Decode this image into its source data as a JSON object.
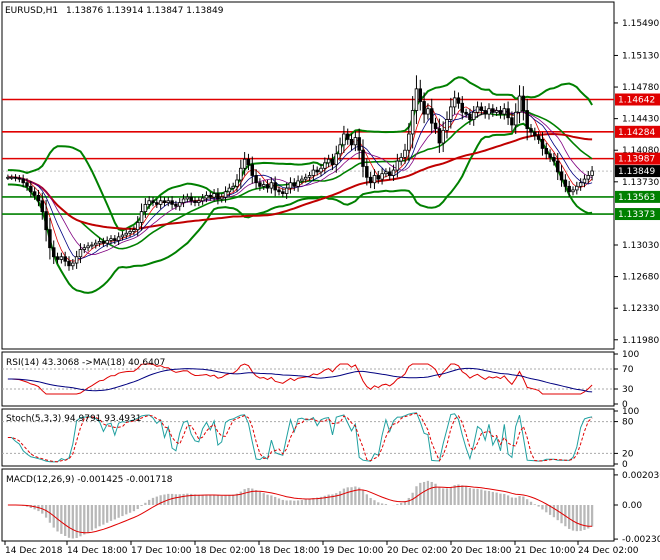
{
  "header": {
    "symbol": "EURUSD,H1",
    "ohlc": "1.13876 1.13914 1.13847 1.13849"
  },
  "chart_data": [
    {
      "type": "candlestick",
      "title": "EURUSD,H1",
      "ylim": [
        1.119,
        1.157
      ],
      "yticks": [
        "1.15490",
        "1.15130",
        "1.14780",
        "1.14430",
        "1.14080",
        "1.13730",
        "1.13030",
        "1.12680",
        "1.12330",
        "1.11980"
      ],
      "xticks": [
        "14 Dec 2018",
        "14 Dec 18:00",
        "17 Dec 10:00",
        "18 Dec 02:00",
        "18 Dec 18:00",
        "19 Dec 10:00",
        "20 Dec 02:00",
        "20 Dec 18:00",
        "21 Dec 10:00",
        "24 Dec 02:00"
      ],
      "hlines": [
        {
          "value": 1.14642,
          "label": "1.14642",
          "color": "#e00000"
        },
        {
          "value": 1.14284,
          "label": "1.14284",
          "color": "#e00000"
        },
        {
          "value": 1.13987,
          "label": "1.13987",
          "color": "#e00000"
        },
        {
          "value": 1.13563,
          "label": "1.13563",
          "color": "#008000"
        },
        {
          "value": 1.13373,
          "label": "1.13373",
          "color": "#008000"
        }
      ],
      "current_price": {
        "value": 1.13849,
        "label": "1.13849"
      },
      "close_series": [
        1.1378,
        1.1378,
        1.1377,
        1.1376,
        1.1372,
        1.1368,
        1.1362,
        1.1358,
        1.1352,
        1.134,
        1.132,
        1.13,
        1.129,
        1.1287,
        1.129,
        1.1285,
        1.128,
        1.1283,
        1.129,
        1.1298,
        1.13,
        1.1302,
        1.1303,
        1.1305,
        1.1307,
        1.1305,
        1.1308,
        1.131,
        1.1308,
        1.1312,
        1.1314,
        1.1316,
        1.1318,
        1.132,
        1.1328,
        1.134,
        1.1348,
        1.1352,
        1.135,
        1.1348,
        1.1352,
        1.135,
        1.1352,
        1.1348,
        1.1346,
        1.135,
        1.1354,
        1.1356,
        1.1352,
        1.135,
        1.1352,
        1.1355,
        1.1358,
        1.1356,
        1.136,
        1.1354,
        1.1356,
        1.1362,
        1.1366,
        1.1368,
        1.1375,
        1.1388,
        1.1398,
        1.1392,
        1.138,
        1.1372,
        1.1368,
        1.137,
        1.1366,
        1.1372,
        1.1364,
        1.1362,
        1.136,
        1.1366,
        1.1372,
        1.1368,
        1.1374,
        1.1376,
        1.1378,
        1.138,
        1.1386,
        1.1384,
        1.1388,
        1.1394,
        1.1398,
        1.1392,
        1.1404,
        1.1414,
        1.1426,
        1.142,
        1.1414,
        1.1422,
        1.1408,
        1.139,
        1.1378,
        1.1372,
        1.138,
        1.1376,
        1.1382,
        1.1384,
        1.138,
        1.1386,
        1.1396,
        1.14,
        1.1408,
        1.1426,
        1.1452,
        1.1476,
        1.1462,
        1.1448,
        1.1454,
        1.1438,
        1.1432,
        1.1416,
        1.143,
        1.1442,
        1.1456,
        1.1466,
        1.146,
        1.145,
        1.1448,
        1.1442,
        1.145,
        1.1456,
        1.1452,
        1.1448,
        1.1454,
        1.145,
        1.1452,
        1.1448,
        1.1454,
        1.1444,
        1.1436,
        1.145,
        1.1468,
        1.1452,
        1.1432,
        1.1428,
        1.1424,
        1.142,
        1.141,
        1.1404,
        1.14,
        1.1396,
        1.1384,
        1.1375,
        1.1368,
        1.1362,
        1.1364,
        1.1368,
        1.1372,
        1.1376,
        1.138,
        1.1385
      ],
      "indicators": [
        {
          "name": "Bollinger Bands",
          "color": "#008000"
        },
        {
          "name": "Moving Averages",
          "colors": [
            "#e00000",
            "#000080",
            "#800080"
          ]
        }
      ]
    },
    {
      "type": "line",
      "title": "RSI(14) 43.3068 ->MA(18) 40.6407",
      "ylim": [
        0,
        100
      ],
      "yticks": [
        "100",
        "70",
        "30",
        "0"
      ]
    },
    {
      "type": "line",
      "title": "Stoch(5,3,3) 94.9791 93.4931",
      "ylim": [
        0,
        100
      ],
      "yticks": [
        "100",
        "80",
        "20",
        "0"
      ]
    },
    {
      "type": "bar",
      "title": "MACD(12,26,9) -0.001425 -0.001718",
      "ylim": [
        -0.0023,
        0.0023
      ],
      "yticks": [
        "0.002036",
        "0.00",
        "-0.002306"
      ]
    }
  ]
}
